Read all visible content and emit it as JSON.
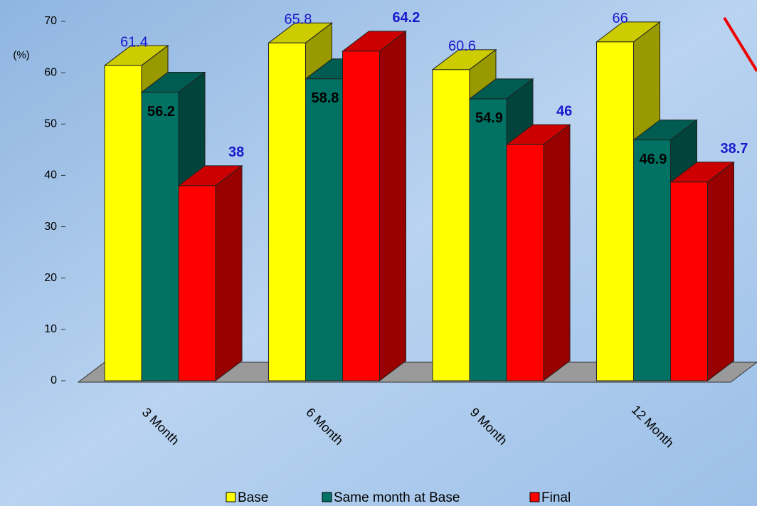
{
  "chart_data": {
    "type": "bar3d",
    "unit_label": "(%)",
    "categories": [
      "3 Month",
      "6 Month",
      "9 Month",
      "12 Month"
    ],
    "series": [
      {
        "name": "Base",
        "color": "#ffff00",
        "label_color": "#1a1acc",
        "values": [
          61.4,
          65.8,
          60.6,
          66
        ]
      },
      {
        "name": "Same month at Base",
        "color": "#007264",
        "label_color": "#000000",
        "values": [
          56.2,
          58.8,
          54.9,
          46.9
        ]
      },
      {
        "name": "Final",
        "color": "#ff0000",
        "label_color": "#1a1acc",
        "values": [
          38,
          64.2,
          46,
          38.7
        ]
      }
    ],
    "ylim": [
      0,
      70
    ],
    "yticks": [
      0,
      10,
      20,
      30,
      40,
      50,
      60,
      70
    ],
    "grid": false
  }
}
